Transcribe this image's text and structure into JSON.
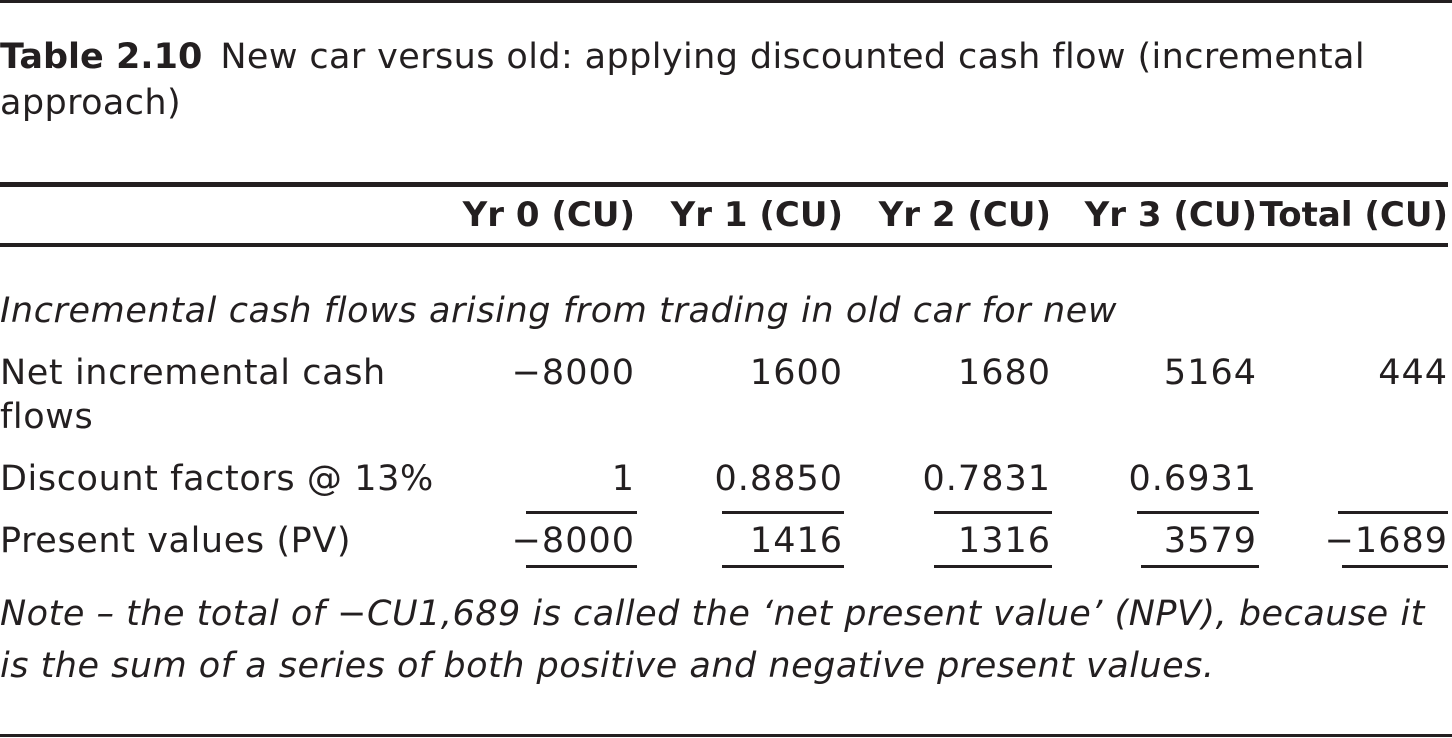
{
  "table": {
    "number": "Table 2.10",
    "title": "New car versus old: applying discounted cash flow (incremental approach)",
    "columns": [
      "Yr 0 (CU)",
      "Yr 1 (CU)",
      "Yr 2 (CU)",
      "Yr 3 (CU)",
      "Total (CU)"
    ],
    "section_heading": "Incremental cash flows arising from trading in old car for new",
    "rows": [
      {
        "label_line1": "Net incremental cash",
        "label_line2": "flows",
        "values": [
          "−8000",
          "1600",
          "1680",
          "5164",
          "444"
        ]
      },
      {
        "label": "Discount factors @ 13%",
        "values": [
          "1",
          "0.8850",
          "0.7831",
          "0.6931",
          ""
        ]
      },
      {
        "label": "Present values (PV)",
        "values": [
          "−8000",
          "1416",
          "1316",
          "3579",
          "−1689"
        ]
      }
    ],
    "note": "Note – the total of −CU1,689 is called the ‘net present value’ (NPV), because it is the sum of a series of both positive and negative present values."
  }
}
